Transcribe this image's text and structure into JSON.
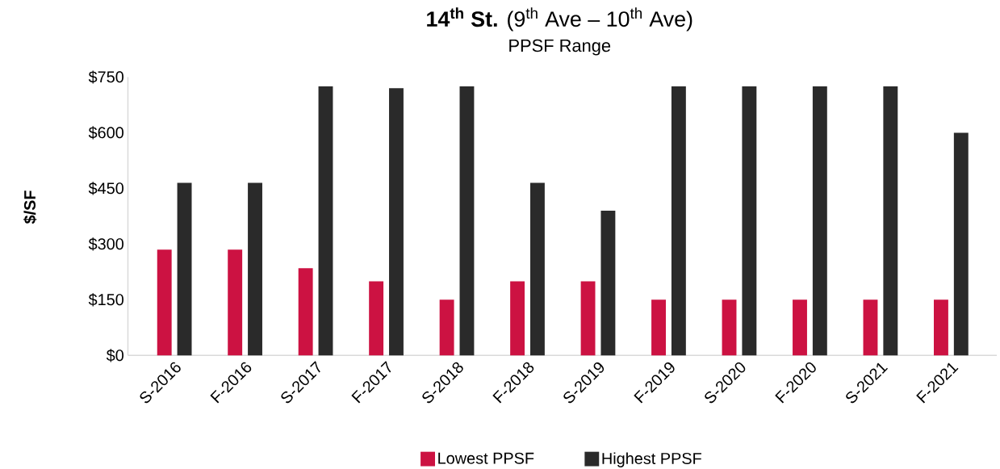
{
  "chart_data": {
    "type": "bar",
    "title": "**14$^{th}$ St.** (9$^{th}$ Ave – 10$^{th}$ Ave)",
    "subtitle": "PPSF Range",
    "ylabel": "$/SF",
    "categories": [
      "S-2016",
      "F-2016",
      "S-2017",
      "F-2017",
      "S-2018",
      "F-2018",
      "S-2019",
      "F-2019",
      "S-2020",
      "F-2020",
      "S-2021",
      "F-2021"
    ],
    "series": [
      {
        "name": "Lowest PPSF",
        "color": "#cc1242",
        "values": [
          285,
          285,
          235,
          200,
          150,
          200,
          200,
          150,
          150,
          150,
          150,
          150
        ]
      },
      {
        "name": "Highest PPSF",
        "color": "#2a2a2a",
        "values": [
          465,
          465,
          725,
          720,
          725,
          465,
          390,
          725,
          725,
          725,
          725,
          600
        ]
      }
    ],
    "ylim": [
      0,
      750
    ],
    "yticks": [
      {
        "value": 0,
        "label": "$0"
      },
      {
        "value": 150,
        "label": "$150"
      },
      {
        "value": 300,
        "label": "$300"
      },
      {
        "value": 450,
        "label": "$450"
      },
      {
        "value": 600,
        "label": "$600"
      },
      {
        "value": 750,
        "label": "$750"
      }
    ],
    "legend": "bottom"
  }
}
